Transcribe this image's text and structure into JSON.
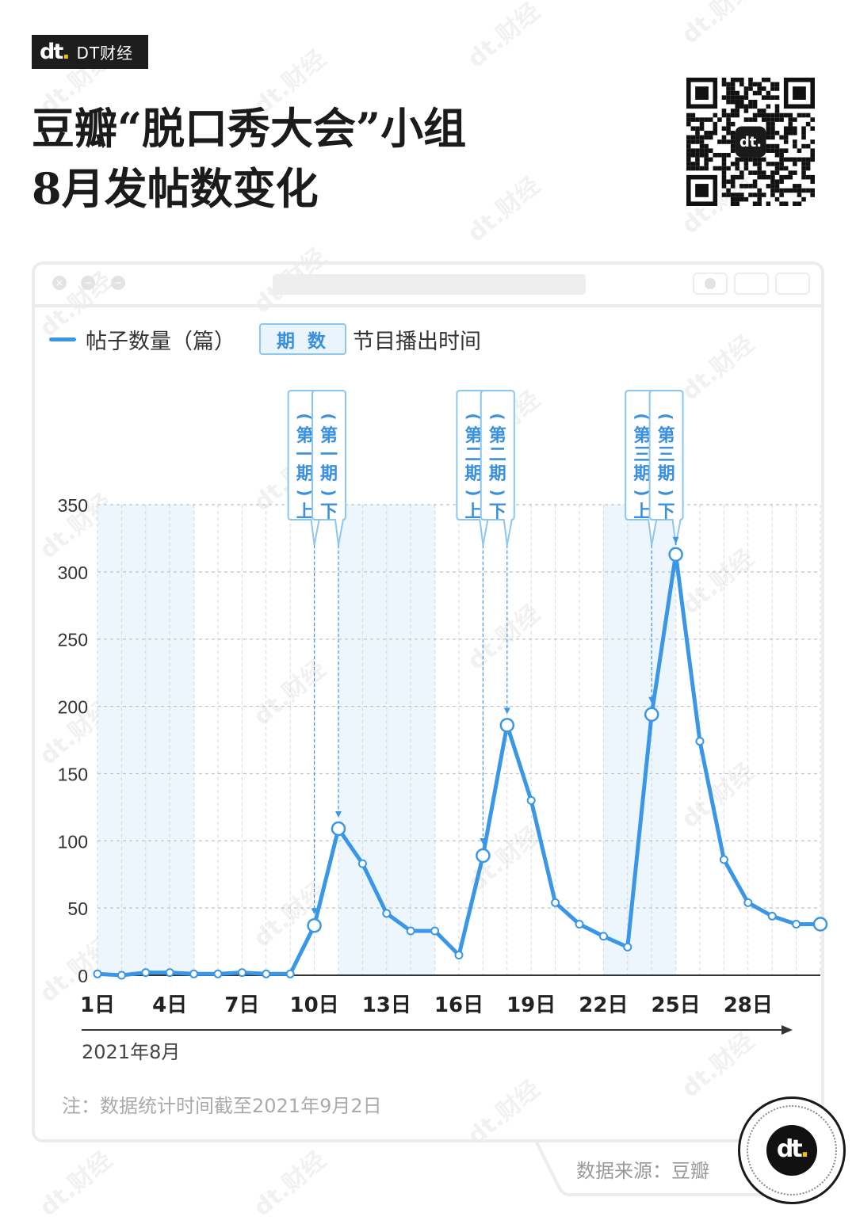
{
  "brand": {
    "logo_main": "dt",
    "logo_dot": ".",
    "name": "DT财经",
    "watermark": "dt.财经"
  },
  "title": {
    "line1": "豆瓣“脱口秀大会”小组",
    "line2": "8月发帖数变化"
  },
  "legend": {
    "series_label": "帖子数量（篇）",
    "badge_label": "期 数",
    "badge_desc": "节目播出时间"
  },
  "colors": {
    "line": "#3a97e8",
    "shade": "#eef6fd",
    "badge_border": "#8cc6f2",
    "badge_text": "#3a90de"
  },
  "chart_data": {
    "type": "line",
    "x": [
      1,
      2,
      3,
      4,
      5,
      6,
      7,
      8,
      9,
      10,
      11,
      12,
      13,
      14,
      15,
      16,
      17,
      18,
      19,
      20,
      21,
      22,
      23,
      24,
      25,
      26,
      27,
      28,
      29,
      30,
      31
    ],
    "x_ticks": [
      "1日",
      "4日",
      "7日",
      "10日",
      "13日",
      "16日",
      "19日",
      "22日",
      "25日",
      "28日"
    ],
    "x_tick_values": [
      1,
      4,
      7,
      10,
      13,
      16,
      19,
      22,
      25,
      28
    ],
    "xlabel": "2021年8月",
    "ylabel": "帖子数量（篇）",
    "ylim": [
      0,
      350
    ],
    "y_ticks": [
      0,
      50,
      100,
      150,
      200,
      250,
      300,
      350
    ],
    "grid": true,
    "series": [
      {
        "name": "帖子数量（篇）",
        "values": [
          1,
          0,
          2,
          2,
          1,
          1,
          2,
          1,
          1,
          37,
          109,
          83,
          46,
          33,
          33,
          15,
          89,
          186,
          130,
          54,
          38,
          29,
          21,
          194,
          313,
          174,
          86,
          54,
          44,
          38,
          38
        ],
        "emphasized_days": [
          10,
          11,
          17,
          18,
          24,
          25,
          31
        ]
      }
    ],
    "shaded_ranges": [
      [
        1,
        5
      ],
      [
        11,
        15
      ],
      [
        22,
        25
      ]
    ],
    "annotations": [
      {
        "day": 10,
        "lines": [
          "(",
          "第",
          "一",
          "期",
          ")",
          "上"
        ]
      },
      {
        "day": 11,
        "lines": [
          "(",
          "第",
          "一",
          "期",
          ")",
          "下"
        ]
      },
      {
        "day": 17,
        "lines": [
          "(",
          "第",
          "二",
          "期",
          ")",
          "上"
        ]
      },
      {
        "day": 18,
        "lines": [
          "(",
          "第",
          "二",
          "期",
          ")",
          "下"
        ]
      },
      {
        "day": 24,
        "lines": [
          "(",
          "第",
          "三",
          "期",
          ")",
          "上"
        ]
      },
      {
        "day": 25,
        "lines": [
          "(",
          "第",
          "三",
          "期",
          ")",
          "下"
        ]
      }
    ]
  },
  "note": "注：数据统计时间截至2021年9月2日",
  "source": "数据来源：豆瓣"
}
